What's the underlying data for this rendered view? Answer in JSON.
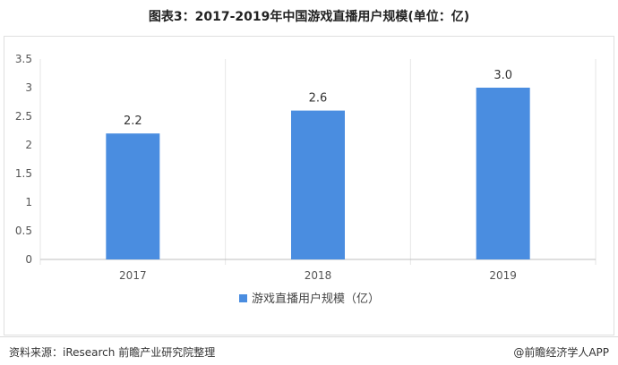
{
  "title": "图表3：2017-2019年中国游戏直播用户规模(单位：亿)",
  "source": "资料来源：iResearch 前瞻产业研究院整理",
  "brand": "@前瞻经济学人APP",
  "colors": {
    "bar": "#4a8de0",
    "grid": "#e6e6e6",
    "axis": "#bfbfbf",
    "text": "#555555"
  },
  "chart_data": {
    "type": "bar",
    "categories": [
      "2017",
      "2018",
      "2019"
    ],
    "series": [
      {
        "name": "游戏直播用户规模（亿）",
        "values": [
          2.2,
          2.6,
          3.0
        ],
        "labels": [
          "2.2",
          "2.6",
          "3.0"
        ]
      }
    ],
    "yticks": [
      "0",
      "0.5",
      "1",
      "1.5",
      "2",
      "2.5",
      "3",
      "3.5"
    ],
    "ylim": [
      0,
      3.5
    ],
    "grid": "vertical separators only",
    "legend_position": "bottom-center"
  }
}
